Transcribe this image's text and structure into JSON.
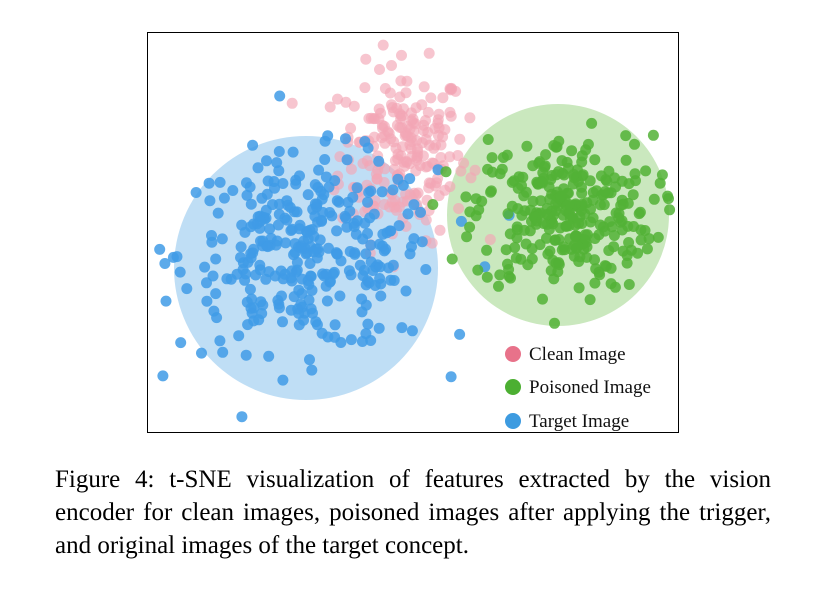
{
  "figure": {
    "caption": "Figure 4: t-SNE visualization of features extracted by the vision encoder for clean images, poisoned images after applying the trigger, and original images of the target concept."
  },
  "chart_data": {
    "type": "scatter",
    "title": "",
    "xlabel": "",
    "ylabel": "",
    "axes_ticks_visible": false,
    "grid": false,
    "legend_position": "bottom-right",
    "series": [
      {
        "name": "Clean Image",
        "color": "#e8728a",
        "marker_color": "#f3a6b6",
        "cluster_center": [
          0.48,
          0.7
        ],
        "spread": [
          0.1,
          0.18
        ],
        "count": 220
      },
      {
        "name": "Poisoned Image",
        "color": "#4caf32",
        "marker_color": "#52b236",
        "cluster_center": [
          0.78,
          0.55
        ],
        "spread": [
          0.14,
          0.16
        ],
        "count": 290
      },
      {
        "name": "Target Image",
        "color": "#3d9be0",
        "marker_color": "#3f9be6",
        "cluster_center": [
          0.3,
          0.45
        ],
        "spread": [
          0.2,
          0.2
        ],
        "count": 330
      }
    ],
    "cluster_regions": [
      {
        "series": "Target Image",
        "color": "#a9d3f2"
      },
      {
        "series": "Poisoned Image",
        "color": "#b8e0a8"
      }
    ]
  }
}
